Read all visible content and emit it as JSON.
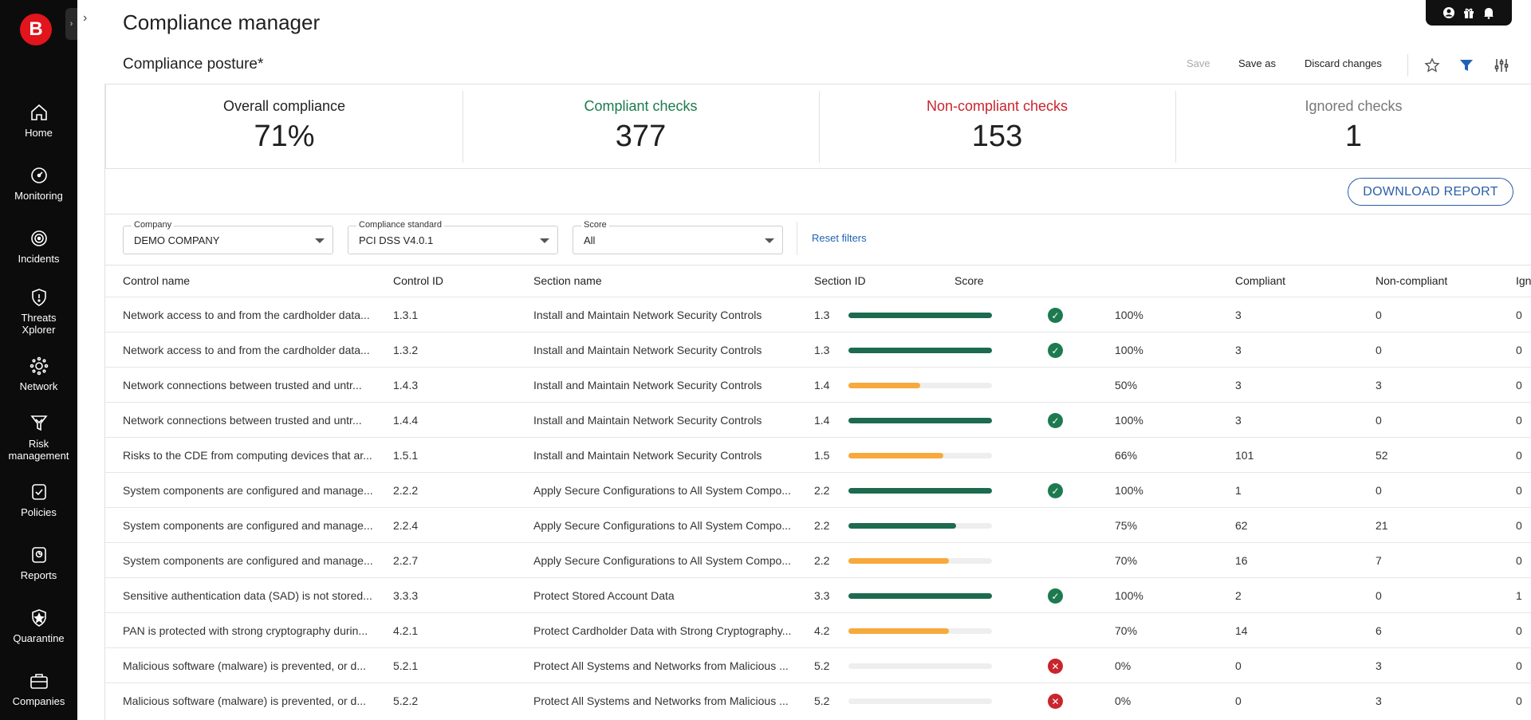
{
  "app": {
    "logo_letter": "B",
    "title": "Compliance manager"
  },
  "sidebar": {
    "items": [
      {
        "label": "Home",
        "icon": "home-icon"
      },
      {
        "label": "Monitoring",
        "icon": "gauge-icon"
      },
      {
        "label": "Incidents",
        "icon": "target-icon"
      },
      {
        "label": "Threats Xplorer",
        "icon": "shield-icon"
      },
      {
        "label": "Network",
        "icon": "network-icon"
      },
      {
        "label": "Risk management",
        "icon": "funnel-icon"
      },
      {
        "label": "Policies",
        "icon": "policy-icon"
      },
      {
        "label": "Reports",
        "icon": "report-icon"
      },
      {
        "label": "Quarantine",
        "icon": "quarantine-shield-icon"
      },
      {
        "label": "Companies",
        "icon": "briefcase-icon"
      }
    ]
  },
  "header": {
    "top_icons": [
      "user-icon",
      "gift-icon",
      "bell-icon"
    ]
  },
  "view": {
    "title": "Compliance posture*",
    "save_label": "Save",
    "save_as_label": "Save as",
    "discard_label": "Discard changes",
    "icons": [
      "star-icon",
      "filter-icon",
      "sliders-icon"
    ]
  },
  "summary": {
    "overall": {
      "label": "Overall compliance",
      "value": "71%"
    },
    "compliant": {
      "label": "Compliant checks",
      "value": "377",
      "color": "#1d7a4f"
    },
    "noncompliant": {
      "label": "Non-compliant checks",
      "value": "153",
      "color": "#c9252d"
    },
    "ignored": {
      "label": "Ignored checks",
      "value": "1",
      "color": "#777777"
    }
  },
  "download_label": "DOWNLOAD REPORT",
  "filters": {
    "company": {
      "label": "Company",
      "value": "DEMO COMPANY"
    },
    "standard": {
      "label": "Compliance standard",
      "value": "PCI DSS V4.0.1"
    },
    "score": {
      "label": "Score",
      "value": "All"
    },
    "reset_label": "Reset filters"
  },
  "table": {
    "headers": [
      "Control name",
      "Control ID",
      "Section name",
      "Section ID",
      "Score",
      "Compliant",
      "Non-compliant",
      "Ign"
    ],
    "colors": {
      "green": "#1d6b4f",
      "orange": "#f7a93b"
    },
    "rows": [
      {
        "control": "Network access to and from the cardholder data...",
        "control_id": "1.3.1",
        "section": "Install and Maintain Network Security Controls",
        "section_id": "1.3",
        "score": 100,
        "score_label": "100%",
        "status": "ok",
        "compliant": "3",
        "noncompliant": "0",
        "ignored": "0"
      },
      {
        "control": "Network access to and from the cardholder data...",
        "control_id": "1.3.2",
        "section": "Install and Maintain Network Security Controls",
        "section_id": "1.3",
        "score": 100,
        "score_label": "100%",
        "status": "ok",
        "compliant": "3",
        "noncompliant": "0",
        "ignored": "0"
      },
      {
        "control": "Network connections between trusted and untr...",
        "control_id": "1.4.3",
        "section": "Install and Maintain Network Security Controls",
        "section_id": "1.4",
        "score": 50,
        "score_label": "50%",
        "status": "none",
        "compliant": "3",
        "noncompliant": "3",
        "ignored": "0"
      },
      {
        "control": "Network connections between trusted and untr...",
        "control_id": "1.4.4",
        "section": "Install and Maintain Network Security Controls",
        "section_id": "1.4",
        "score": 100,
        "score_label": "100%",
        "status": "ok",
        "compliant": "3",
        "noncompliant": "0",
        "ignored": "0"
      },
      {
        "control": "Risks to the CDE from computing devices that ar...",
        "control_id": "1.5.1",
        "section": "Install and Maintain Network Security Controls",
        "section_id": "1.5",
        "score": 66,
        "score_label": "66%",
        "status": "none",
        "compliant": "101",
        "noncompliant": "52",
        "ignored": "0"
      },
      {
        "control": "System components are configured and manage...",
        "control_id": "2.2.2",
        "section": "Apply Secure Configurations to All System Compo...",
        "section_id": "2.2",
        "score": 100,
        "score_label": "100%",
        "status": "ok",
        "compliant": "1",
        "noncompliant": "0",
        "ignored": "0"
      },
      {
        "control": "System components are configured and manage...",
        "control_id": "2.2.4",
        "section": "Apply Secure Configurations to All System Compo...",
        "section_id": "2.2",
        "score": 75,
        "score_label": "75%",
        "status": "none",
        "compliant": "62",
        "noncompliant": "21",
        "ignored": "0"
      },
      {
        "control": "System components are configured and manage...",
        "control_id": "2.2.7",
        "section": "Apply Secure Configurations to All System Compo...",
        "section_id": "2.2",
        "score": 70,
        "score_label": "70%",
        "status": "none",
        "compliant": "16",
        "noncompliant": "7",
        "ignored": "0"
      },
      {
        "control": "Sensitive authentication data (SAD) is not stored...",
        "control_id": "3.3.3",
        "section": "Protect Stored Account Data",
        "section_id": "3.3",
        "score": 100,
        "score_label": "100%",
        "status": "ok",
        "compliant": "2",
        "noncompliant": "0",
        "ignored": "1"
      },
      {
        "control": "PAN is protected with strong cryptography durin...",
        "control_id": "4.2.1",
        "section": "Protect Cardholder Data with Strong Cryptography...",
        "section_id": "4.2",
        "score": 70,
        "score_label": "70%",
        "status": "none",
        "compliant": "14",
        "noncompliant": "6",
        "ignored": "0"
      },
      {
        "control": "Malicious software (malware) is prevented, or d...",
        "control_id": "5.2.1",
        "section": "Protect All Systems and Networks from Malicious ...",
        "section_id": "5.2",
        "score": 0,
        "score_label": "0%",
        "status": "fail",
        "compliant": "0",
        "noncompliant": "3",
        "ignored": "0"
      },
      {
        "control": "Malicious software (malware) is prevented, or d...",
        "control_id": "5.2.2",
        "section": "Protect All Systems and Networks from Malicious ...",
        "section_id": "5.2",
        "score": 0,
        "score_label": "0%",
        "status": "fail",
        "compliant": "0",
        "noncompliant": "3",
        "ignored": "0"
      }
    ]
  }
}
